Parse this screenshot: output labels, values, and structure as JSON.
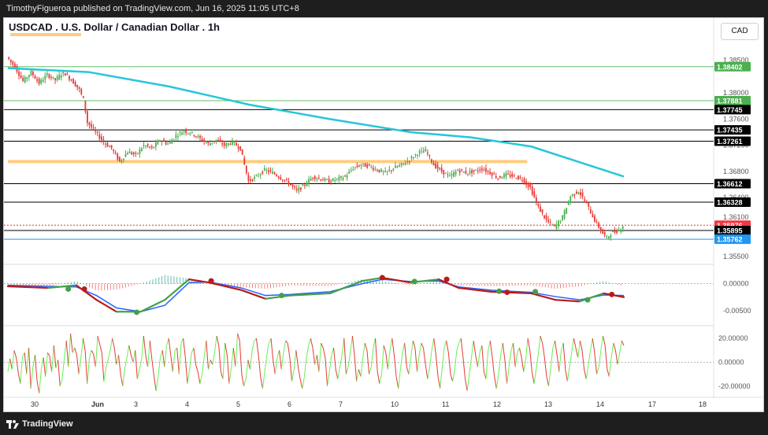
{
  "header": {
    "publisher_text": "TimothyFigueroa published on TradingView.com, Jun 16, 2025 11:05 UTC+8"
  },
  "footer": {
    "brand": "TradingView"
  },
  "chart_title": "USDCAD . U.S. Dollar / Canadian Dollar . 1h",
  "currency_label": "CAD",
  "colors": {
    "up": "#4caf50",
    "down": "#e53935",
    "ma": "#26c6da",
    "orange": "#ffcc80",
    "green_line": "#66bb6a",
    "black_line": "#000000",
    "blue_line": "#2196f3",
    "macd_fast": "#2962ff",
    "macd_slow_up": "#43a047",
    "macd_slow_down": "#b71c1c",
    "rsi_up": "#69f050",
    "rsi_down": "#e53935"
  },
  "chart_data": {
    "type": "candlestick",
    "price_axis": {
      "min": 1.3545,
      "max": 1.387,
      "ticks": [
        "1.38500",
        "1.38000",
        "1.37600",
        "1.37200",
        "1.36800",
        "1.36400",
        "1.36100",
        "1.35500"
      ],
      "tick_values": [
        1.385,
        1.38,
        1.376,
        1.372,
        1.368,
        1.364,
        1.361,
        1.355
      ]
    },
    "x_axis": {
      "labels": [
        "30",
        "Jun",
        "3",
        "4",
        "5",
        "6",
        "7",
        "10",
        "11",
        "12",
        "13",
        "14",
        "17",
        "18"
      ]
    },
    "price_path": [
      [
        0,
        1.3855
      ],
      [
        4,
        1.384
      ],
      [
        8,
        1.3818
      ],
      [
        12,
        1.3832
      ],
      [
        16,
        1.3815
      ],
      [
        20,
        1.3828
      ],
      [
        24,
        1.382
      ],
      [
        28,
        1.3832
      ],
      [
        32,
        1.382
      ],
      [
        36,
        1.3805
      ],
      [
        38,
        1.379
      ],
      [
        40,
        1.3755
      ],
      [
        44,
        1.374
      ],
      [
        48,
        1.3725
      ],
      [
        52,
        1.3715
      ],
      [
        56,
        1.3695
      ],
      [
        60,
        1.371
      ],
      [
        64,
        1.3705
      ],
      [
        68,
        1.372
      ],
      [
        72,
        1.3715
      ],
      [
        76,
        1.3728
      ],
      [
        80,
        1.3722
      ],
      [
        84,
        1.3735
      ],
      [
        88,
        1.3742
      ],
      [
        92,
        1.3738
      ],
      [
        96,
        1.373
      ],
      [
        100,
        1.3722
      ],
      [
        104,
        1.3728
      ],
      [
        108,
        1.372
      ],
      [
        112,
        1.3725
      ],
      [
        116,
        1.3715
      ],
      [
        118,
        1.369
      ],
      [
        120,
        1.3665
      ],
      [
        124,
        1.3672
      ],
      [
        128,
        1.3682
      ],
      [
        132,
        1.3678
      ],
      [
        136,
        1.367
      ],
      [
        140,
        1.3662
      ],
      [
        144,
        1.365
      ],
      [
        148,
        1.366
      ],
      [
        152,
        1.3672
      ],
      [
        156,
        1.3668
      ],
      [
        160,
        1.3665
      ],
      [
        164,
        1.3668
      ],
      [
        168,
        1.3672
      ],
      [
        172,
        1.3685
      ],
      [
        176,
        1.369
      ],
      [
        180,
        1.3688
      ],
      [
        184,
        1.3682
      ],
      [
        188,
        1.3678
      ],
      [
        192,
        1.3685
      ],
      [
        196,
        1.369
      ],
      [
        200,
        1.3698
      ],
      [
        204,
        1.3708
      ],
      [
        208,
        1.3712
      ],
      [
        212,
        1.369
      ],
      [
        216,
        1.368
      ],
      [
        220,
        1.3672
      ],
      [
        224,
        1.3682
      ],
      [
        228,
        1.3678
      ],
      [
        232,
        1.368
      ],
      [
        236,
        1.3684
      ],
      [
        240,
        1.3678
      ],
      [
        244,
        1.367
      ],
      [
        248,
        1.3675
      ],
      [
        252,
        1.3672
      ],
      [
        256,
        1.3668
      ],
      [
        260,
        1.3655
      ],
      [
        264,
        1.3625
      ],
      [
        268,
        1.3605
      ],
      [
        272,
        1.3595
      ],
      [
        276,
        1.361
      ],
      [
        280,
        1.3642
      ],
      [
        284,
        1.365
      ],
      [
        288,
        1.363
      ],
      [
        292,
        1.3605
      ],
      [
        296,
        1.3585
      ],
      [
        298,
        1.3578
      ],
      [
        300,
        1.3585
      ],
      [
        304,
        1.359
      ],
      [
        306,
        1.3597
      ]
    ],
    "moving_average": [
      [
        0,
        1.3838
      ],
      [
        40,
        1.3832
      ],
      [
        80,
        1.381
      ],
      [
        120,
        1.3782
      ],
      [
        160,
        1.376
      ],
      [
        200,
        1.374
      ],
      [
        230,
        1.3732
      ],
      [
        260,
        1.3718
      ],
      [
        290,
        1.3688
      ],
      [
        306,
        1.3672
      ]
    ],
    "horizontal_levels": [
      {
        "price": 1.38402,
        "label": "1.38402",
        "kind": "green"
      },
      {
        "price": 1.37881,
        "label": "1.37881",
        "kind": "green"
      },
      {
        "price": 1.37745,
        "label": "1.37745",
        "kind": "black"
      },
      {
        "price": 1.37435,
        "label": "1.37435",
        "kind": "black"
      },
      {
        "price": 1.37261,
        "label": "1.37261",
        "kind": "black"
      },
      {
        "price": 1.36612,
        "label": "1.36612",
        "kind": "black"
      },
      {
        "price": 1.36328,
        "label": "1.36328",
        "kind": "black"
      },
      {
        "price": 1.35976,
        "label": "1.35976",
        "kind": "red_dotted"
      },
      {
        "price": 1.35895,
        "label": "1.35895",
        "kind": "black"
      },
      {
        "price": 1.35762,
        "label": "1.35762",
        "kind": "blue"
      }
    ],
    "orange_zone": {
      "price": 1.3695,
      "from_step": 0,
      "to_step": 258
    },
    "macd": {
      "axis_ticks": [
        "0.00000",
        "-0.00500"
      ],
      "tick_values": [
        0.0,
        -0.005
      ],
      "min": -0.0072,
      "max": 0.003,
      "line": [
        [
          0,
          -0.0005
        ],
        [
          20,
          -0.0008
        ],
        [
          34,
          -0.0003
        ],
        [
          44,
          -0.003
        ],
        [
          54,
          -0.0052
        ],
        [
          66,
          -0.0052
        ],
        [
          78,
          -0.003
        ],
        [
          90,
          0.0008
        ],
        [
          100,
          0.0002
        ],
        [
          116,
          -0.0012
        ],
        [
          128,
          -0.0028
        ],
        [
          140,
          -0.0022
        ],
        [
          160,
          -0.0018
        ],
        [
          176,
          0.0005
        ],
        [
          186,
          0.0011
        ],
        [
          200,
          0.0002
        ],
        [
          214,
          0.0008
        ],
        [
          224,
          -0.0008
        ],
        [
          240,
          -0.0015
        ],
        [
          260,
          -0.0018
        ],
        [
          272,
          -0.003
        ],
        [
          284,
          -0.0033
        ],
        [
          296,
          -0.0018
        ],
        [
          306,
          -0.0025
        ]
      ],
      "signal": [
        [
          0,
          -0.0003
        ],
        [
          20,
          -0.0005
        ],
        [
          34,
          -0.0006
        ],
        [
          44,
          -0.0022
        ],
        [
          54,
          -0.0045
        ],
        [
          66,
          -0.0052
        ],
        [
          78,
          -0.004
        ],
        [
          90,
          0.0002
        ],
        [
          100,
          0.0003
        ],
        [
          116,
          -0.0008
        ],
        [
          128,
          -0.0022
        ],
        [
          140,
          -0.002
        ],
        [
          160,
          -0.0015
        ],
        [
          176,
          0.0
        ],
        [
          186,
          0.0008
        ],
        [
          200,
          0.0004
        ],
        [
          214,
          0.0005
        ],
        [
          224,
          -0.0006
        ],
        [
          240,
          -0.0012
        ],
        [
          260,
          -0.0016
        ],
        [
          272,
          -0.0024
        ],
        [
          284,
          -0.003
        ],
        [
          296,
          -0.0021
        ],
        [
          306,
          -0.0022
        ]
      ],
      "cross_points": [
        {
          "step": 30,
          "value": -0.001,
          "dir": "up"
        },
        {
          "step": 38,
          "value": -0.001,
          "dir": "down"
        },
        {
          "step": 64,
          "value": -0.0053,
          "dir": "up"
        },
        {
          "step": 101,
          "value": 0.0005,
          "dir": "down"
        },
        {
          "step": 136,
          "value": -0.0022,
          "dir": "up"
        },
        {
          "step": 186,
          "value": 0.0011,
          "dir": "down"
        },
        {
          "step": 202,
          "value": 0.0004,
          "dir": "up"
        },
        {
          "step": 218,
          "value": 0.0008,
          "dir": "down"
        },
        {
          "step": 244,
          "value": -0.0014,
          "dir": "up"
        },
        {
          "step": 248,
          "value": -0.0016,
          "dir": "down"
        },
        {
          "step": 262,
          "value": -0.0015,
          "dir": "up"
        },
        {
          "step": 288,
          "value": -0.003,
          "dir": "up"
        },
        {
          "step": 300,
          "value": -0.002,
          "dir": "down"
        }
      ]
    },
    "rsi_like": {
      "axis_ticks": [
        "20.00000",
        "0.00000",
        "-20.00000"
      ],
      "tick_values": [
        20,
        0,
        -20
      ],
      "min": -26,
      "max": 28,
      "values": [
        -8,
        3,
        -6,
        10,
        4,
        -9,
        -18,
        5,
        8,
        -10,
        12,
        -22,
        -4,
        6,
        -16,
        -26,
        -6,
        4,
        -12,
        8,
        5,
        -8,
        14,
        -5,
        2,
        -20,
        -14,
        3,
        18,
        -4,
        24,
        8,
        12,
        6,
        -10,
        4,
        20,
        10,
        -18,
        3,
        10,
        7,
        -4,
        22,
        15,
        8,
        -16,
        -4,
        2,
        10,
        20,
        12,
        -2,
        6,
        -10,
        -20,
        -5,
        4,
        14,
        6,
        0,
        10,
        -14,
        -6,
        2,
        22,
        6,
        -4,
        18,
        2,
        -12,
        -24,
        -12,
        4,
        10,
        -4,
        14,
        20,
        6,
        -8,
        10,
        12,
        -10,
        16,
        20,
        4,
        -18,
        -6,
        8,
        12,
        -2,
        -8,
        -18,
        -10,
        4,
        18,
        -6,
        2,
        -2,
        8,
        22,
        14,
        -8,
        -14,
        16,
        6,
        -18,
        -4,
        12,
        -4,
        24,
        18,
        -10,
        -20,
        -14,
        2,
        -6,
        10,
        18,
        20,
        6,
        -12,
        -22,
        -8,
        6,
        16,
        20,
        2,
        -10,
        4,
        10,
        -6,
        8,
        18,
        16,
        4,
        -16,
        -6,
        10,
        -4,
        -14,
        -22,
        -12,
        4,
        14,
        20,
        12,
        -2,
        6,
        -8,
        16,
        12,
        4,
        -20,
        -8,
        6,
        12,
        -6,
        -14,
        -4,
        6,
        20,
        -10,
        -4,
        8,
        22,
        6,
        -16,
        -6,
        -12,
        4,
        16,
        10,
        -10,
        -4,
        12,
        20,
        -8,
        -18,
        -10,
        14,
        8,
        -6,
        10,
        20,
        6,
        -12,
        -22,
        -6,
        8,
        16,
        -4,
        -10,
        4,
        18,
        12,
        -8,
        6,
        16,
        12,
        -2,
        -14,
        -4,
        10,
        20,
        6,
        -12,
        -22,
        -4,
        12,
        18,
        8,
        -10,
        -16,
        -6,
        10,
        16,
        20,
        4,
        -14,
        -24,
        -10,
        4,
        18,
        6,
        -4,
        8,
        14,
        -8,
        -14,
        10,
        18,
        4,
        -12,
        -22,
        -10,
        6,
        16,
        2,
        -18,
        -4,
        10,
        16,
        -4,
        8,
        12,
        4,
        -8,
        2,
        20,
        10,
        -8,
        -18,
        -6,
        6,
        22,
        16,
        4,
        -12,
        -20,
        -4,
        12,
        18,
        6,
        -8,
        10,
        16,
        -6,
        -16,
        -4,
        8,
        20,
        12,
        4,
        18,
        10,
        -6,
        -14,
        -2,
        10,
        20,
        8,
        -10,
        -4,
        10,
        22,
        14,
        -6,
        -12,
        4,
        16,
        10,
        -2,
        8,
        18,
        14
      ]
    }
  }
}
